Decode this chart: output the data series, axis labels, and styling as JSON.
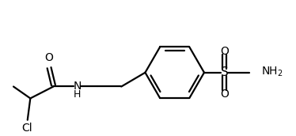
{
  "bg_color": "#ffffff",
  "line_color": "#000000",
  "line_width": 1.6,
  "font_size": 10,
  "figsize": [
    3.74,
    1.72
  ],
  "dpi": 100,
  "xlim": [
    0.0,
    10.5
  ],
  "ylim": [
    -1.8,
    2.8
  ]
}
